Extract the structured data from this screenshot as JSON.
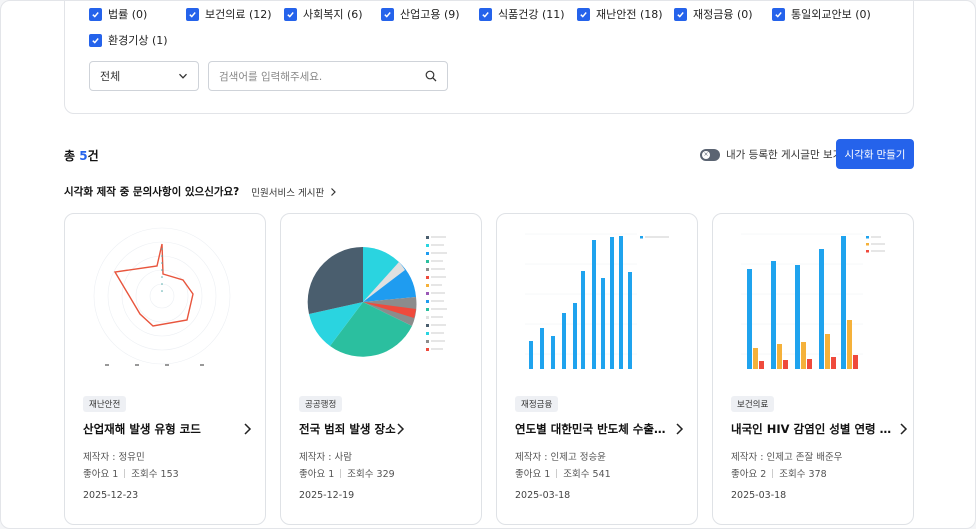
{
  "filters": {
    "row1": [
      {
        "label": "법률 (0)",
        "checked": true
      },
      {
        "label": "보건의료 (12)",
        "checked": true
      },
      {
        "label": "사회복지 (6)",
        "checked": true
      },
      {
        "label": "산업고용 (9)",
        "checked": true
      },
      {
        "label": "식품건강 (11)",
        "checked": true
      },
      {
        "label": "재난안전 (18)",
        "checked": true
      },
      {
        "label": "재정금융 (0)",
        "checked": true
      },
      {
        "label": "통일외교안보 (0)",
        "checked": true
      }
    ],
    "row2": [
      {
        "label": "환경기상 (1)",
        "checked": true
      }
    ],
    "select_value": "전체",
    "search_placeholder": "검색어를 입력해주세요."
  },
  "summary": {
    "total_prefix": "총",
    "total_count": "5",
    "total_suffix": "건",
    "toggle_label": "내가 등록한 게시글만 보기",
    "toggle_on": false,
    "create_button": "시각화 만들기",
    "inquiry_text": "시각화 제작 중 문의사항이 있으신가요?",
    "inquiry_link": "민원서비스 게시판"
  },
  "colors": {
    "accent": "#2563eb",
    "radar_line": "#e8553d",
    "pie_dark": "#4a5e6e",
    "pie_teal": "#2bbf9f",
    "pie_cyan": "#2ad4e0",
    "pie_blue": "#1f9cf0",
    "bar_blue": "#1fa3ee",
    "bar_orange": "#f5b13a",
    "bar_red": "#ef4a3c"
  },
  "cards": [
    {
      "category": "재난안전",
      "title": "산업재해 발생 유형 코드",
      "author": "제작자 : 정유민",
      "likes": "좋아요 1",
      "views": "조회수 153",
      "date": "2025-12-23",
      "thumb": "radar-chart"
    },
    {
      "category": "공공행정",
      "title": "전국 범죄 발생 장소",
      "author": "제작자 : 사람",
      "likes": "좋아요 1",
      "views": "조회수 329",
      "date": "2025-12-19",
      "thumb": "pie-chart"
    },
    {
      "category": "재정금융",
      "title": "연도별 대한민국 반도체 수출…",
      "author": "제작자 : 인제고 정승윤",
      "likes": "좋아요 1",
      "views": "조회수 541",
      "date": "2025-03-18",
      "thumb": "bar-chart"
    },
    {
      "category": "보건의료",
      "title": "내국인 HIV 감염인 성별 연령 현황",
      "author": "제작자 : 인제고 존잘 배준우",
      "likes": "좋아요 2",
      "views": "조회수 378",
      "date": "2025-03-18",
      "thumb": "grouped-bar-chart"
    }
  ]
}
